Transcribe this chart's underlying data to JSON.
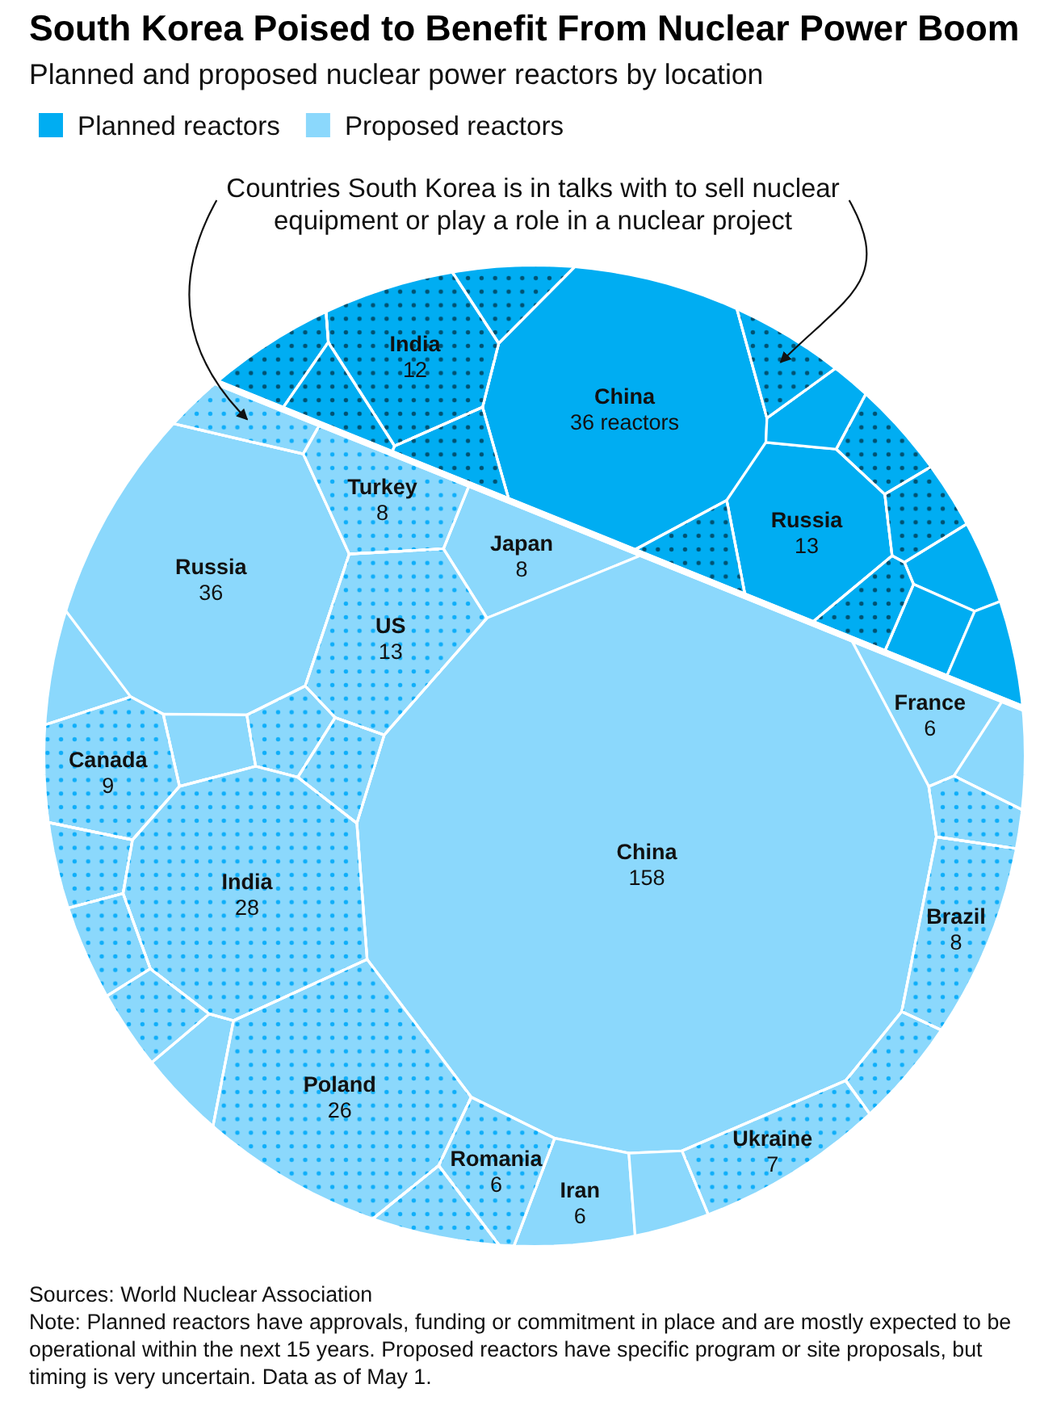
{
  "chart_data": {
    "type": "other",
    "title": "South Korea Poised to Benefit From Nuclear Power Boom",
    "subtitle": "Planned and proposed nuclear power reactors by location",
    "legend": "top left",
    "categories": [
      "India",
      null,
      "China",
      null,
      null,
      null,
      null,
      "Russia",
      null,
      null,
      null,
      null,
      null,
      null,
      null,
      null,
      null,
      null,
      "Russia",
      "Turkey",
      "Japan",
      "Canada",
      null,
      null,
      "US",
      "France",
      null,
      null,
      "India",
      null,
      "China",
      "Brazil",
      null,
      null,
      null,
      "Poland",
      "Romania",
      "Ukraine",
      null,
      null,
      null,
      "Iran",
      null
    ],
    "series": [
      {
        "name": "Planned reactors",
        "color": "#00adf2",
        "values": [
          null,
          null,
          36,
          null,
          null,
          null,
          null,
          13,
          null,
          null,
          null,
          null,
          null,
          null,
          null,
          null,
          null,
          null,
          null,
          null,
          null,
          null,
          null,
          null,
          null,
          null,
          null,
          null,
          null,
          null,
          null,
          null,
          null,
          null,
          null,
          null,
          null,
          null,
          null,
          null,
          null,
          null,
          null
        ],
        "colors": [
          null,
          null,
          "#00adf2",
          null,
          null,
          null,
          null,
          "#00adf2",
          "#00adf2",
          null,
          null,
          null,
          null,
          "#00adf2",
          "#00adf2",
          "#00adf2",
          null,
          null,
          null,
          null,
          null,
          null,
          null,
          null,
          null,
          null,
          null,
          null,
          null,
          null,
          null,
          null,
          null,
          null,
          null,
          null,
          null,
          null,
          null,
          null,
          null,
          null,
          null
        ],
        "value_labels": [
          null,
          null,
          "36 reactors",
          null,
          null,
          null,
          null,
          "13",
          null,
          null,
          null,
          null,
          null,
          null,
          null,
          null,
          null,
          null,
          null,
          null,
          null,
          null,
          null,
          null,
          null,
          null,
          null,
          null,
          null,
          null,
          null,
          null,
          null,
          null,
          null,
          null,
          null,
          null,
          null,
          null,
          null,
          null,
          null
        ]
      },
      {
        "color": "#00adf2",
        "marker": "circle",
        "values": [
          12,
          null,
          null,
          null,
          null,
          null,
          null,
          null,
          null,
          null,
          null,
          null,
          null,
          null,
          null,
          null,
          null,
          null,
          null,
          null,
          null,
          null,
          null,
          null,
          null,
          null,
          null,
          null,
          null,
          null,
          null,
          null,
          null,
          null,
          null,
          null,
          null,
          null,
          null,
          null,
          null,
          null,
          null
        ],
        "colors": [
          "#00adf2",
          "#00adf2",
          null,
          "#00adf2",
          "#00adf2",
          "#00adf2",
          "#00adf2",
          null,
          null,
          "#00adf2",
          "#00adf2",
          "#00adf2",
          "#00adf2",
          null,
          null,
          null,
          null,
          null,
          null,
          null,
          null,
          null,
          null,
          null,
          null,
          null,
          null,
          null,
          null,
          null,
          null,
          null,
          null,
          null,
          null,
          null,
          null,
          null,
          null,
          null,
          null,
          null,
          null
        ],
        "value_labels": [
          "12",
          null,
          null,
          null,
          null,
          null,
          null,
          null,
          null,
          null,
          null,
          null,
          null,
          null,
          null,
          null,
          null,
          null,
          null,
          null,
          null,
          null,
          null,
          null,
          null,
          null,
          null,
          null,
          null,
          null,
          null,
          null,
          null,
          null,
          null,
          null,
          null,
          null,
          null,
          null,
          null,
          null,
          null
        ]
      },
      {
        "name": "Proposed reactors",
        "color": "#8bd8fc",
        "values": [
          null,
          null,
          null,
          null,
          null,
          null,
          null,
          null,
          null,
          null,
          null,
          null,
          null,
          null,
          null,
          null,
          null,
          null,
          36,
          null,
          8,
          null,
          null,
          null,
          null,
          6,
          null,
          null,
          null,
          null,
          158,
          null,
          null,
          null,
          null,
          null,
          null,
          null,
          null,
          null,
          null,
          6,
          null
        ],
        "colors": [
          null,
          null,
          null,
          null,
          null,
          null,
          null,
          null,
          null,
          null,
          null,
          null,
          null,
          null,
          null,
          null,
          null,
          "#8bd8fc",
          "#8bd8fc",
          null,
          "#8bd8fc",
          null,
          "#8bd8fc",
          null,
          null,
          "#8bd8fc",
          "#8bd8fc",
          null,
          null,
          null,
          "#8bd8fc",
          null,
          null,
          null,
          null,
          null,
          null,
          null,
          null,
          "#8bd8fc",
          null,
          "#8bd8fc",
          "#8bd8fc"
        ],
        "value_labels": [
          null,
          null,
          null,
          null,
          null,
          null,
          null,
          null,
          null,
          null,
          null,
          null,
          null,
          null,
          null,
          null,
          null,
          null,
          "36",
          null,
          "8",
          null,
          null,
          null,
          null,
          "6",
          null,
          null,
          null,
          null,
          "158",
          null,
          null,
          null,
          null,
          null,
          null,
          null,
          null,
          null,
          null,
          "6",
          null
        ]
      },
      {
        "color": "#8bd8fc",
        "marker": "circle",
        "values": [
          null,
          null,
          null,
          null,
          null,
          null,
          null,
          null,
          null,
          null,
          null,
          null,
          null,
          null,
          null,
          null,
          null,
          null,
          null,
          8,
          null,
          9,
          null,
          null,
          13,
          null,
          null,
          null,
          28,
          null,
          null,
          8,
          null,
          null,
          null,
          26,
          6,
          7,
          null,
          null,
          null,
          null,
          null
        ],
        "colors": [
          null,
          null,
          null,
          null,
          null,
          null,
          null,
          null,
          null,
          null,
          null,
          null,
          null,
          null,
          null,
          null,
          "#8bd8fc",
          null,
          null,
          "#8bd8fc",
          null,
          "#8bd8fc",
          null,
          "#8bd8fc",
          "#8bd8fc",
          null,
          null,
          "#8bd8fc",
          "#8bd8fc",
          "#8bd8fc",
          null,
          "#8bd8fc",
          "#8bd8fc",
          "#8bd8fc",
          "#8bd8fc",
          "#8bd8fc",
          "#8bd8fc",
          "#8bd8fc",
          "#8bd8fc",
          null,
          "#8bd8fc",
          null,
          null
        ],
        "value_labels": [
          null,
          null,
          null,
          null,
          null,
          null,
          null,
          null,
          null,
          null,
          null,
          null,
          null,
          null,
          null,
          null,
          null,
          null,
          null,
          "8",
          null,
          "9",
          null,
          null,
          "13",
          null,
          null,
          null,
          "28",
          null,
          null,
          "8",
          null,
          null,
          null,
          "26",
          "6",
          "7",
          null,
          null,
          null,
          null,
          null
        ]
      }
    ],
    "annotations": [
      "Countries South Korea is in talks with to sell nuclear equipment or play a role in a nuclear project",
      "Sources: World Nuclear Association",
      "Note: Planned reactors have approvals, funding or commitment in place and are mostly expected to be operational within the next 15 years. Proposed reactors have specific program or site proposals, but timing is very uncertain. Data as of May 1."
    ]
  }
}
